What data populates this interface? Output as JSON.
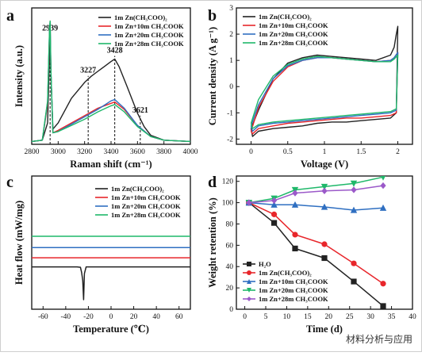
{
  "colors": {
    "black": "#222222",
    "red": "#e8262b",
    "blue": "#2f6fc1",
    "green": "#1fb86a",
    "purple": "#9b59c9"
  },
  "watermark": "材料分析与应用",
  "chart_data": [
    {
      "id": "a",
      "panel_label": "a",
      "type": "line",
      "xlabel": "Raman shift (cm⁻¹)",
      "ylabel": "Intensity (a.u.)",
      "xlim": [
        2800,
        4000
      ],
      "xticks": [
        2800,
        3000,
        3200,
        3400,
        3600,
        3800,
        4000
      ],
      "legend_position": "top-right",
      "peak_labels": [
        {
          "text": "2939",
          "x": 2939
        },
        {
          "text": "3227",
          "x": 3227
        },
        {
          "text": "3428",
          "x": 3428
        },
        {
          "text": "3621",
          "x": 3621
        }
      ],
      "series": [
        {
          "name": "1m Zn(CH₃COO)₂",
          "color": "#222222",
          "x": [
            2800,
            2880,
            2920,
            2935,
            2939,
            2945,
            2960,
            3000,
            3100,
            3200,
            3250,
            3300,
            3350,
            3400,
            3428,
            3460,
            3520,
            3600,
            3650,
            3700,
            3800,
            4000
          ],
          "y": [
            0.05,
            0.06,
            0.2,
            0.75,
            0.9,
            0.6,
            0.15,
            0.2,
            0.4,
            0.53,
            0.58,
            0.62,
            0.66,
            0.7,
            0.72,
            0.66,
            0.5,
            0.28,
            0.17,
            0.1,
            0.06,
            0.05
          ]
        },
        {
          "name": "1m Zn+10m CH₃COOK",
          "color": "#e8262b",
          "x": [
            2800,
            2880,
            2920,
            2935,
            2939,
            2945,
            2960,
            3000,
            3100,
            3200,
            3300,
            3400,
            3428,
            3500,
            3600,
            3700,
            3800,
            4000
          ],
          "y": [
            0.05,
            0.06,
            0.35,
            0.95,
            1.0,
            0.6,
            0.12,
            0.14,
            0.2,
            0.26,
            0.32,
            0.36,
            0.37,
            0.31,
            0.18,
            0.09,
            0.06,
            0.05
          ]
        },
        {
          "name": "1m Zn+20m CH₃COOK",
          "color": "#2f6fc1",
          "x": [
            2800,
            2880,
            2920,
            2935,
            2939,
            2945,
            2960,
            3000,
            3100,
            3200,
            3300,
            3400,
            3428,
            3500,
            3600,
            3700,
            3800,
            4000
          ],
          "y": [
            0.05,
            0.06,
            0.37,
            0.97,
            1.02,
            0.62,
            0.12,
            0.13,
            0.19,
            0.25,
            0.31,
            0.38,
            0.39,
            0.32,
            0.18,
            0.09,
            0.06,
            0.05
          ]
        },
        {
          "name": "1m Zn+28m CH₃COOK",
          "color": "#1fb86a",
          "x": [
            2800,
            2880,
            2920,
            2935,
            2939,
            2945,
            2960,
            3000,
            3100,
            3200,
            3300,
            3400,
            3428,
            3500,
            3600,
            3700,
            3800,
            4000
          ],
          "y": [
            0.05,
            0.06,
            0.38,
            0.98,
            1.03,
            0.63,
            0.12,
            0.13,
            0.18,
            0.23,
            0.29,
            0.34,
            0.35,
            0.29,
            0.17,
            0.09,
            0.06,
            0.05
          ]
        }
      ]
    },
    {
      "id": "b",
      "panel_label": "b",
      "type": "line",
      "xlabel": "Voltage (V)",
      "ylabel": "Current density (A g⁻¹)",
      "xlim": [
        -0.2,
        2.2
      ],
      "ylim": [
        -2.2,
        3.0
      ],
      "xticks": [
        0.0,
        0.5,
        1.0,
        1.5,
        2.0
      ],
      "yticks": [
        -2,
        -1,
        0,
        1,
        2,
        3
      ],
      "legend_position": "top-left",
      "series": [
        {
          "name": "1m Zn(CH₃COO)₂",
          "color": "#222222",
          "x": [
            0,
            0.1,
            0.3,
            0.5,
            0.7,
            0.9,
            1.1,
            1.3,
            1.5,
            1.7,
            1.9,
            1.95,
            1.98,
            2.0,
            1.98,
            1.9,
            1.7,
            1.5,
            1.3,
            1.1,
            0.9,
            0.7,
            0.5,
            0.3,
            0.1,
            0.02,
            0
          ],
          "y": [
            -1.6,
            -0.9,
            0.3,
            0.9,
            1.1,
            1.2,
            1.15,
            1.1,
            1.05,
            1.0,
            1.2,
            1.5,
            2.0,
            2.3,
            -1.0,
            -1.2,
            -1.25,
            -1.3,
            -1.35,
            -1.35,
            -1.4,
            -1.5,
            -1.55,
            -1.6,
            -1.7,
            -1.9,
            -1.6
          ]
        },
        {
          "name": "1m Zn+10m CH₃COOK",
          "color": "#e8262b",
          "x": [
            0,
            0.1,
            0.3,
            0.5,
            0.7,
            0.9,
            1.1,
            1.3,
            1.5,
            1.7,
            1.9,
            1.95,
            2.0,
            1.98,
            1.9,
            1.7,
            1.5,
            1.3,
            1.1,
            0.9,
            0.7,
            0.5,
            0.3,
            0.1,
            0.02,
            0
          ],
          "y": [
            -1.7,
            -0.8,
            0.2,
            0.75,
            1.0,
            1.1,
            1.1,
            1.05,
            1.0,
            0.95,
            1.0,
            1.1,
            1.3,
            -1.0,
            -1.1,
            -1.15,
            -1.2,
            -1.2,
            -1.25,
            -1.3,
            -1.35,
            -1.4,
            -1.5,
            -1.6,
            -1.8,
            -1.7
          ]
        },
        {
          "name": "1m Zn+20m CH₃COOK",
          "color": "#2f6fc1",
          "x": [
            0,
            0.1,
            0.3,
            0.5,
            0.7,
            0.9,
            1.1,
            1.3,
            1.5,
            1.7,
            1.9,
            1.95,
            2.0,
            1.98,
            1.9,
            1.7,
            1.5,
            1.3,
            1.1,
            0.9,
            0.7,
            0.5,
            0.3,
            0.1,
            0.02,
            0
          ],
          "y": [
            -1.5,
            -0.7,
            0.3,
            0.8,
            1.0,
            1.1,
            1.1,
            1.05,
            1.0,
            0.95,
            1.0,
            1.1,
            1.3,
            -0.9,
            -1.0,
            -1.05,
            -1.1,
            -1.15,
            -1.2,
            -1.25,
            -1.3,
            -1.35,
            -1.4,
            -1.5,
            -1.7,
            -1.5
          ]
        },
        {
          "name": "1m Zn+28m CH₃COOK",
          "color": "#1fb86a",
          "x": [
            0,
            0.1,
            0.3,
            0.5,
            0.7,
            0.9,
            1.1,
            1.3,
            1.5,
            1.7,
            1.9,
            1.95,
            2.0,
            1.98,
            1.9,
            1.7,
            1.5,
            1.3,
            1.1,
            0.9,
            0.7,
            0.5,
            0.3,
            0.1,
            0.02,
            0
          ],
          "y": [
            -1.4,
            -0.5,
            0.4,
            0.85,
            1.05,
            1.15,
            1.1,
            1.05,
            1.0,
            0.95,
            0.95,
            1.05,
            1.2,
            -0.85,
            -0.95,
            -1.0,
            -1.05,
            -1.1,
            -1.15,
            -1.2,
            -1.25,
            -1.3,
            -1.35,
            -1.45,
            -1.6,
            -1.4
          ]
        }
      ]
    },
    {
      "id": "c",
      "panel_label": "c",
      "type": "line",
      "xlabel": "Temperature (℃)",
      "ylabel": "Heat flow (mW/mg)",
      "xlim": [
        -70,
        70
      ],
      "xticks": [
        -60,
        -40,
        -20,
        0,
        20,
        40,
        60
      ],
      "legend_position": "top-right",
      "series": [
        {
          "name": "1m Zn(CH₃COO)₂",
          "color": "#222222",
          "x": [
            -70,
            -30,
            -27,
            -26,
            -25,
            -24.2,
            -23.5,
            -22,
            70
          ],
          "y": [
            0.0,
            0.0,
            -0.02,
            -0.25,
            -0.6,
            -1.45,
            -0.3,
            0.0,
            0.0
          ]
        },
        {
          "name": "1m Zn+10m CH₃COOK",
          "color": "#e8262b",
          "x": [
            -70,
            70
          ],
          "y": [
            0.4,
            0.4
          ]
        },
        {
          "name": "1m Zn+20m CH₃COOK",
          "color": "#2f6fc1",
          "x": [
            -70,
            70
          ],
          "y": [
            0.85,
            0.85
          ]
        },
        {
          "name": "1m Zn+28m CH₃COOK",
          "color": "#1fb86a",
          "x": [
            -70,
            70
          ],
          "y": [
            1.35,
            1.35
          ]
        }
      ]
    },
    {
      "id": "d",
      "panel_label": "d",
      "type": "line",
      "xlabel": "Time (d)",
      "ylabel": "Weight retention (%)",
      "xlim": [
        -2,
        40
      ],
      "ylim": [
        0,
        125
      ],
      "xticks": [
        0,
        5,
        10,
        15,
        20,
        25,
        30,
        35,
        40
      ],
      "yticks": [
        0,
        20,
        40,
        60,
        80,
        100,
        120
      ],
      "legend_position": "bottom-left",
      "series": [
        {
          "name": "H₂O",
          "color": "#222222",
          "marker": "square",
          "x": [
            1,
            7,
            12,
            19,
            26,
            33
          ],
          "y": [
            100,
            81,
            57,
            48,
            26,
            3
          ]
        },
        {
          "name": "1m Zn(CH₃COO)₂",
          "color": "#e8262b",
          "marker": "circle",
          "x": [
            1,
            7,
            12,
            19,
            26,
            33
          ],
          "y": [
            100,
            89,
            70,
            61,
            43,
            24
          ]
        },
        {
          "name": "1m Zn+10m CH₃COOK",
          "color": "#2f6fc1",
          "marker": "triangle-up",
          "x": [
            1,
            7,
            12,
            19,
            26,
            33
          ],
          "y": [
            100,
            98,
            98,
            96,
            93,
            95
          ]
        },
        {
          "name": "1m Zn+20m CH₃COOK",
          "color": "#1fb86a",
          "marker": "triangle-down",
          "x": [
            1,
            7,
            12,
            19,
            26,
            33
          ],
          "y": [
            100,
            104,
            112,
            115,
            118,
            124
          ]
        },
        {
          "name": "1m Zn+28m CH₃COOK",
          "color": "#9b59c9",
          "marker": "diamond",
          "x": [
            1,
            7,
            12,
            19,
            26,
            33
          ],
          "y": [
            100,
            102,
            109,
            111,
            112,
            116
          ]
        }
      ]
    }
  ]
}
